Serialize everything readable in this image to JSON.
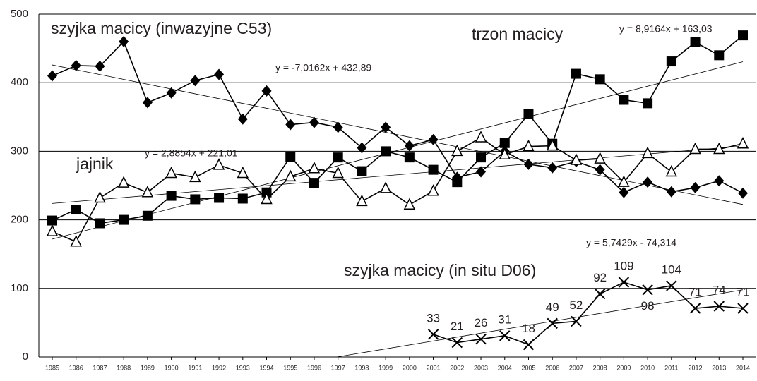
{
  "chart_data": {
    "type": "line",
    "categories": [
      "1985",
      "1986",
      "1987",
      "1988",
      "1989",
      "1990",
      "1991",
      "1992",
      "1993",
      "1994",
      "1995",
      "1996",
      "1997",
      "1998",
      "1999",
      "2000",
      "2001",
      "2002",
      "2003",
      "2004",
      "2005",
      "2006",
      "2007",
      "2008",
      "2009",
      "2010",
      "2011",
      "2012",
      "2013",
      "2014"
    ],
    "ylim": [
      0,
      500
    ],
    "yticks": [
      0,
      100,
      200,
      300,
      400,
      500
    ],
    "grid": true,
    "series": [
      {
        "name": "szyjka macicy (inwazyjne C53)",
        "color": "#000000",
        "marker": "diamond",
        "values": [
          410,
          425,
          424,
          460,
          371,
          385,
          403,
          412,
          347,
          388,
          339,
          342,
          335,
          305,
          335,
          308,
          317,
          262,
          270,
          300,
          281,
          276,
          285,
          273,
          240,
          255,
          241,
          247,
          257,
          239
        ],
        "trendline": {
          "slope": -7.0162,
          "intercept": 432.89,
          "label": "y = -7,0162x + 432,89"
        }
      },
      {
        "name": "trzon macicy",
        "color": "#000000",
        "marker": "square",
        "values": [
          199,
          215,
          195,
          200,
          206,
          235,
          230,
          232,
          231,
          240,
          292,
          254,
          291,
          271,
          300,
          291,
          273,
          255,
          291,
          312,
          354,
          311,
          413,
          405,
          375,
          370,
          431,
          459,
          440,
          469
        ],
        "trendline": {
          "slope": 8.9164,
          "intercept": 163.03,
          "label": "y = 8,9164x + 163,03"
        }
      },
      {
        "name": "jajnik",
        "color": "#000000",
        "marker": "triangle",
        "values": [
          183,
          168,
          232,
          254,
          240,
          268,
          262,
          280,
          268,
          230,
          263,
          275,
          268,
          227,
          246,
          222,
          242,
          300,
          320,
          295,
          307,
          308,
          287,
          289,
          255,
          297,
          270,
          303,
          303,
          311
        ],
        "trendline": {
          "slope": 2.8854,
          "intercept": 221.01,
          "label": "y = 2,8854x + 221,01"
        }
      },
      {
        "name": "szyjka macicy (in situ D06)",
        "color": "#000000",
        "marker": "x",
        "data_labels": true,
        "values": [
          null,
          null,
          null,
          null,
          null,
          null,
          null,
          null,
          null,
          null,
          null,
          null,
          null,
          null,
          null,
          null,
          33,
          21,
          26,
          31,
          18,
          49,
          52,
          92,
          109,
          98,
          104,
          71,
          74,
          71
        ],
        "trendline": {
          "slope": 5.7429,
          "intercept": -74.314,
          "label": "y = 5,7429x - 74,314"
        }
      }
    ]
  }
}
